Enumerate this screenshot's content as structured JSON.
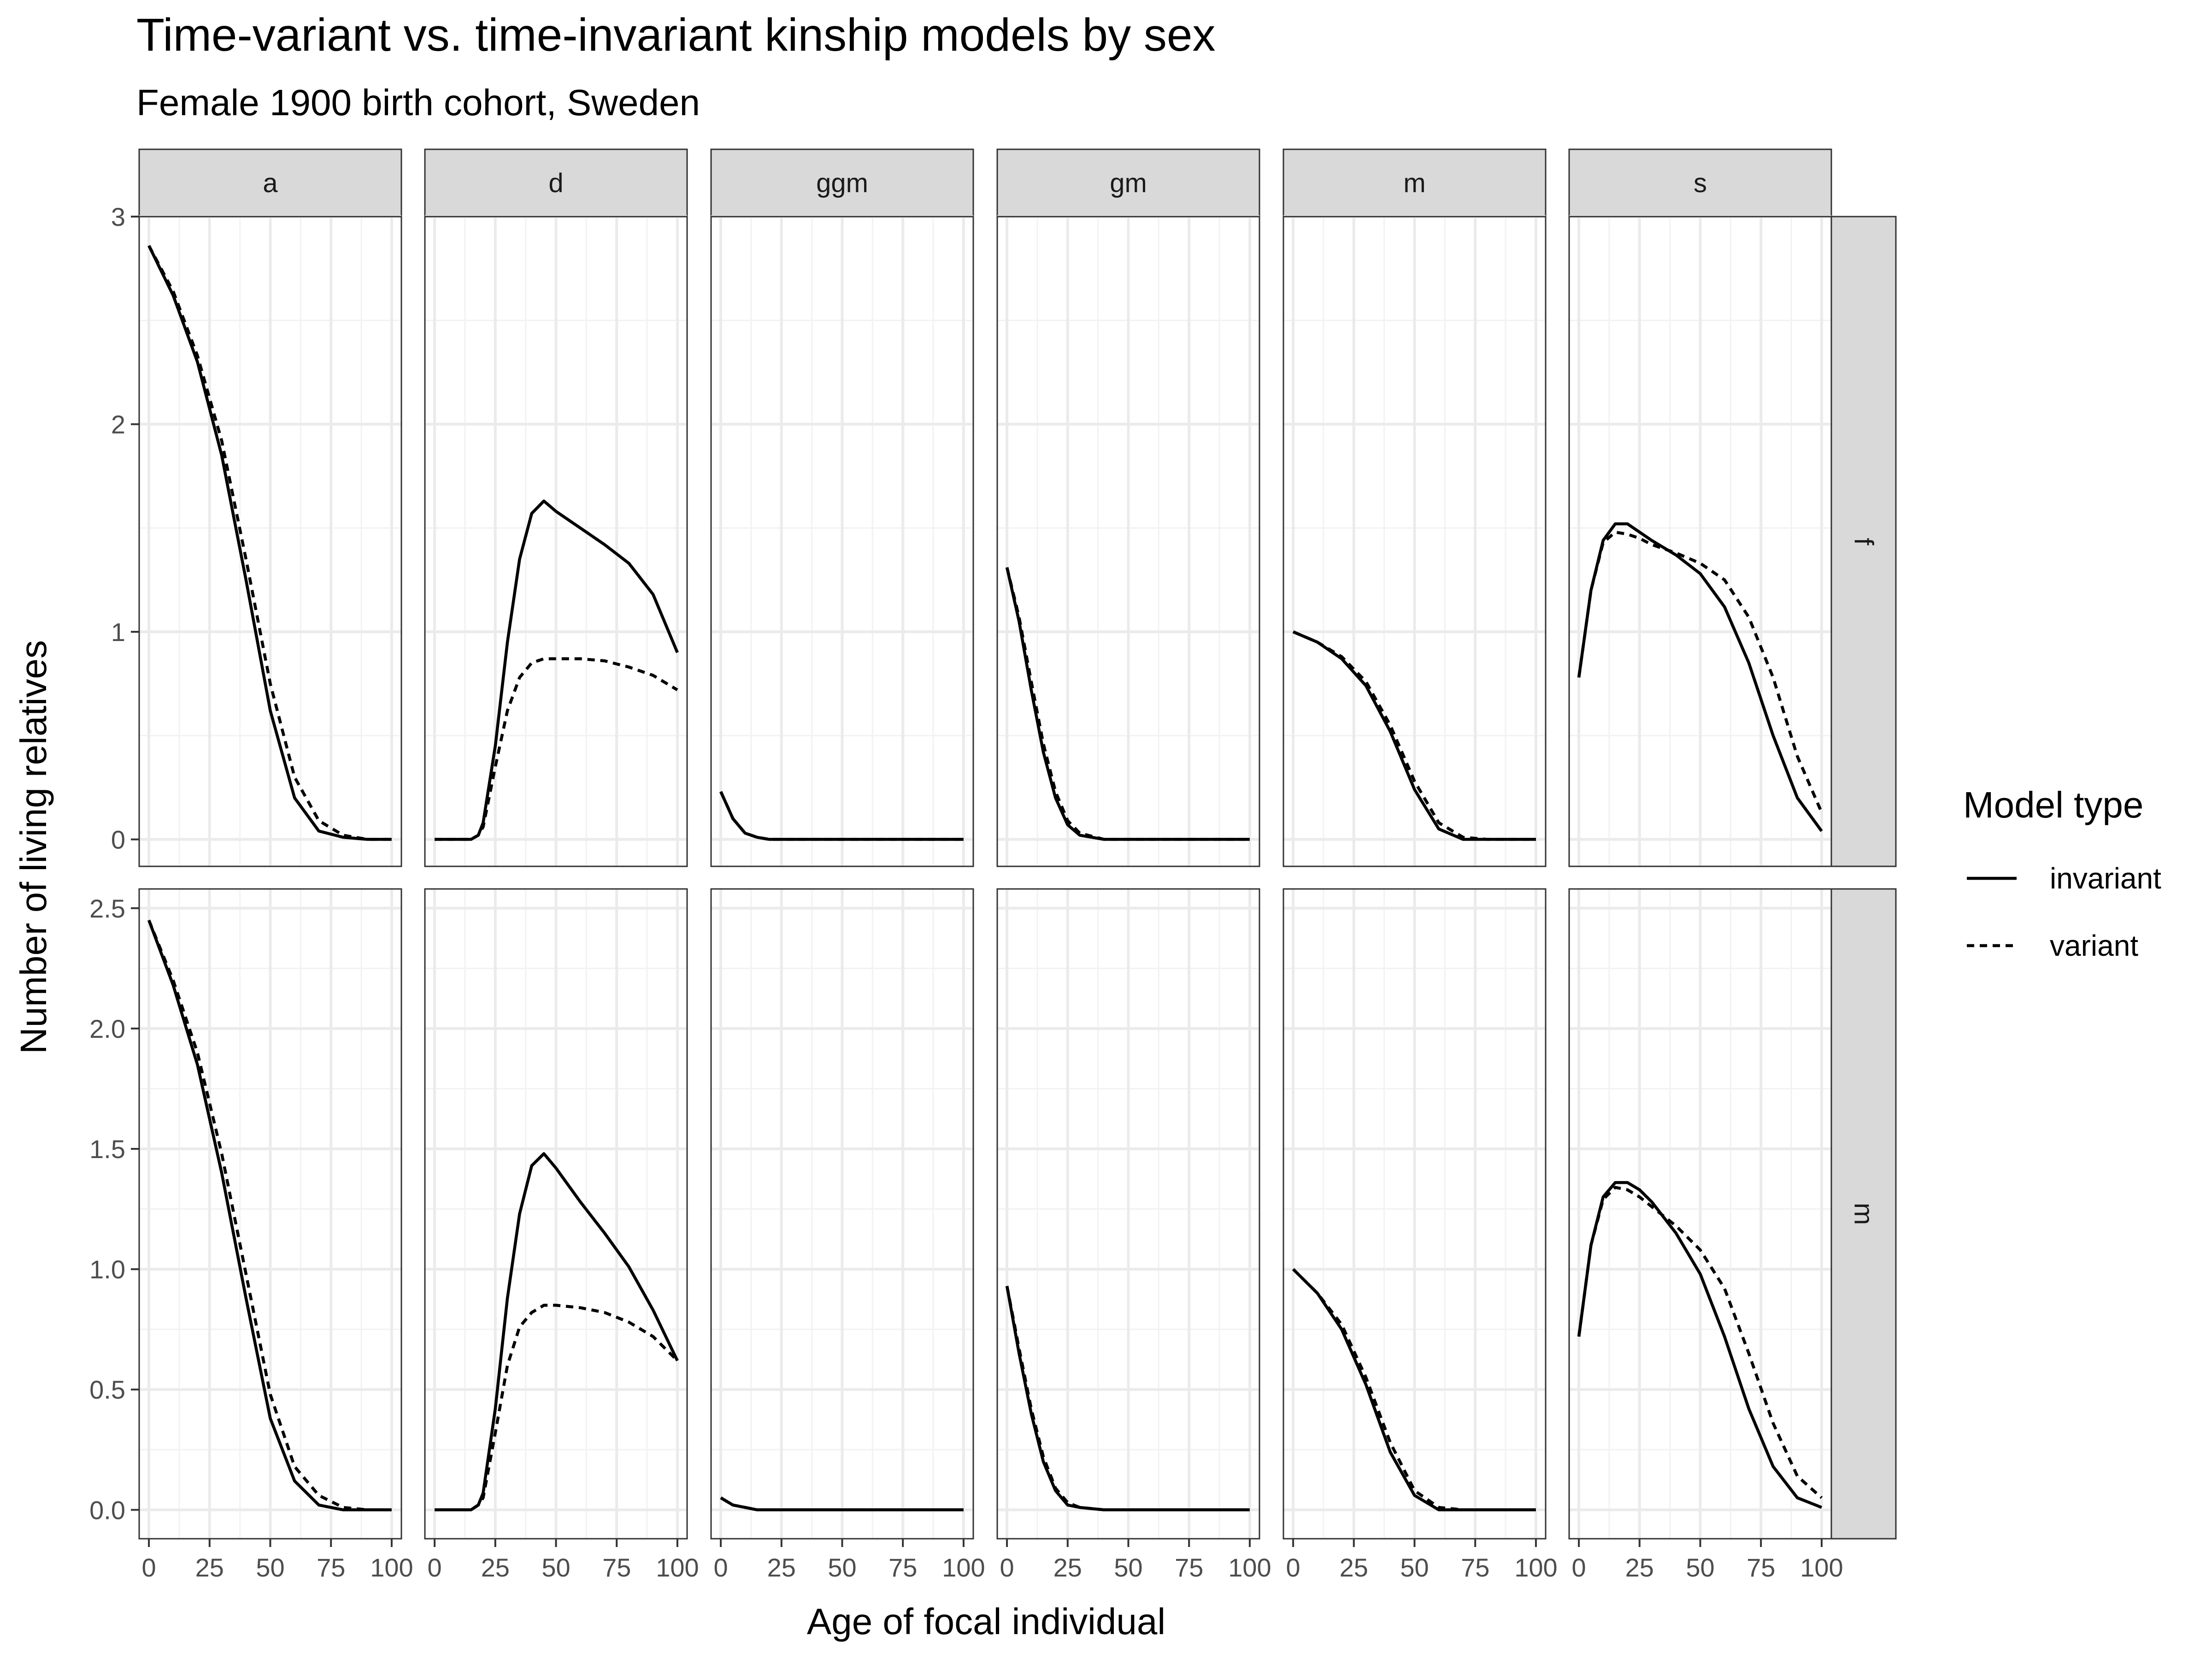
{
  "chart_data": {
    "type": "line",
    "title": "Time-variant vs. time-invariant kinship models by sex",
    "subtitle": "Female 1900 birth cohort, Sweden",
    "xlabel": "Age of focal individual",
    "ylabel": "Number of living relatives",
    "x_ticks": [
      0,
      25,
      50,
      75,
      100
    ],
    "xlim": [
      -4,
      104
    ],
    "columns": [
      "a",
      "d",
      "ggm",
      "gm",
      "m",
      "s"
    ],
    "rows": [
      "f",
      "m"
    ],
    "rows_y": {
      "f": {
        "ylim": [
          -0.13,
          3.0
        ],
        "ticks": [
          0,
          1,
          2,
          3
        ],
        "tick_labels": [
          "0",
          "1",
          "2",
          "3"
        ]
      },
      "m": {
        "ylim": [
          -0.12,
          2.58
        ],
        "ticks": [
          0,
          0.5,
          1,
          1.5,
          2,
          2.5
        ],
        "tick_labels": [
          "0.0",
          "0.5",
          "1.0",
          "1.5",
          "2.0",
          "2.5"
        ]
      }
    },
    "grid": true,
    "legend": {
      "title": "Model type",
      "position": "right",
      "entries": [
        {
          "name": "invariant",
          "linetype": "solid"
        },
        {
          "name": "variant",
          "linetype": "dashed"
        }
      ]
    },
    "line_color": "#000000",
    "panels": [
      {
        "col": "a",
        "row": "f",
        "series": [
          {
            "name": "invariant",
            "x": [
              0,
              10,
              20,
              30,
              40,
              50,
              60,
              70,
              80,
              90,
              100
            ],
            "y": [
              2.86,
              2.62,
              2.3,
              1.85,
              1.25,
              0.62,
              0.2,
              0.04,
              0.01,
              0.0,
              0.0
            ]
          },
          {
            "name": "variant",
            "x": [
              0,
              10,
              20,
              30,
              40,
              50,
              60,
              70,
              80,
              90,
              100
            ],
            "y": [
              2.86,
              2.64,
              2.33,
              1.92,
              1.35,
              0.75,
              0.3,
              0.09,
              0.02,
              0.0,
              0.0
            ]
          }
        ]
      },
      {
        "col": "d",
        "row": "f",
        "series": [
          {
            "name": "invariant",
            "x": [
              0,
              15,
              18,
              20,
              25,
              30,
              35,
              40,
              45,
              50,
              60,
              70,
              80,
              90,
              100
            ],
            "y": [
              0,
              0,
              0.02,
              0.08,
              0.45,
              0.95,
              1.35,
              1.57,
              1.63,
              1.58,
              1.5,
              1.42,
              1.33,
              1.18,
              0.9
            ]
          },
          {
            "name": "variant",
            "x": [
              0,
              15,
              18,
              20,
              25,
              30,
              35,
              40,
              45,
              50,
              60,
              70,
              80,
              90,
              100
            ],
            "y": [
              0,
              0,
              0.02,
              0.06,
              0.35,
              0.62,
              0.78,
              0.85,
              0.87,
              0.87,
              0.87,
              0.86,
              0.83,
              0.79,
              0.72
            ]
          }
        ]
      },
      {
        "col": "ggm",
        "row": "f",
        "series": [
          {
            "name": "invariant",
            "x": [
              0,
              5,
              10,
              15,
              20,
              30,
              40,
              60,
              80,
              100
            ],
            "y": [
              0.23,
              0.1,
              0.03,
              0.01,
              0,
              0,
              0,
              0,
              0,
              0
            ]
          },
          {
            "name": "variant",
            "x": [
              0,
              5,
              10,
              15,
              20,
              30,
              40,
              60,
              80,
              100
            ],
            "y": [
              0.23,
              0.1,
              0.03,
              0.01,
              0,
              0,
              0,
              0,
              0,
              0
            ]
          }
        ]
      },
      {
        "col": "gm",
        "row": "f",
        "series": [
          {
            "name": "invariant",
            "x": [
              0,
              5,
              10,
              15,
              20,
              25,
              30,
              40,
              50,
              60,
              80,
              100
            ],
            "y": [
              1.31,
              1.05,
              0.72,
              0.42,
              0.2,
              0.07,
              0.02,
              0,
              0,
              0,
              0,
              0
            ]
          },
          {
            "name": "variant",
            "x": [
              0,
              5,
              10,
              15,
              20,
              25,
              30,
              40,
              50,
              60,
              80,
              100
            ],
            "y": [
              1.31,
              1.07,
              0.76,
              0.46,
              0.23,
              0.09,
              0.03,
              0,
              0,
              0,
              0,
              0
            ]
          }
        ]
      },
      {
        "col": "m",
        "row": "f",
        "series": [
          {
            "name": "invariant",
            "x": [
              0,
              10,
              20,
              30,
              40,
              50,
              60,
              70,
              80,
              100
            ],
            "y": [
              1.0,
              0.95,
              0.87,
              0.74,
              0.52,
              0.24,
              0.05,
              0.0,
              0,
              0
            ]
          },
          {
            "name": "variant",
            "x": [
              0,
              10,
              20,
              30,
              40,
              50,
              60,
              70,
              80,
              100
            ],
            "y": [
              1.0,
              0.95,
              0.88,
              0.76,
              0.55,
              0.28,
              0.08,
              0.01,
              0,
              0
            ]
          }
        ]
      },
      {
        "col": "s",
        "row": "f",
        "series": [
          {
            "name": "invariant",
            "x": [
              0,
              5,
              10,
              15,
              20,
              25,
              30,
              40,
              50,
              60,
              70,
              80,
              90,
              100
            ],
            "y": [
              0.78,
              1.2,
              1.44,
              1.52,
              1.52,
              1.48,
              1.44,
              1.37,
              1.28,
              1.12,
              0.85,
              0.5,
              0.2,
              0.04
            ]
          },
          {
            "name": "variant",
            "x": [
              0,
              5,
              10,
              15,
              20,
              25,
              30,
              40,
              50,
              60,
              70,
              80,
              90,
              100
            ],
            "y": [
              0.78,
              1.2,
              1.43,
              1.48,
              1.47,
              1.45,
              1.42,
              1.38,
              1.33,
              1.25,
              1.07,
              0.78,
              0.4,
              0.13
            ]
          }
        ]
      },
      {
        "col": "a",
        "row": "m",
        "series": [
          {
            "name": "invariant",
            "x": [
              0,
              10,
              20,
              30,
              40,
              50,
              60,
              70,
              80,
              90,
              100
            ],
            "y": [
              2.45,
              2.18,
              1.85,
              1.4,
              0.88,
              0.38,
              0.12,
              0.02,
              0.0,
              0,
              0
            ]
          },
          {
            "name": "variant",
            "x": [
              0,
              10,
              20,
              30,
              40,
              50,
              60,
              70,
              80,
              90,
              100
            ],
            "y": [
              2.45,
              2.2,
              1.9,
              1.48,
              0.98,
              0.48,
              0.18,
              0.06,
              0.01,
              0,
              0
            ]
          }
        ]
      },
      {
        "col": "d",
        "row": "m",
        "series": [
          {
            "name": "invariant",
            "x": [
              0,
              15,
              18,
              20,
              25,
              30,
              35,
              40,
              45,
              50,
              60,
              70,
              80,
              90,
              100
            ],
            "y": [
              0,
              0,
              0.02,
              0.07,
              0.42,
              0.88,
              1.23,
              1.43,
              1.48,
              1.42,
              1.28,
              1.15,
              1.01,
              0.83,
              0.62
            ]
          },
          {
            "name": "variant",
            "x": [
              0,
              15,
              18,
              20,
              25,
              30,
              35,
              40,
              45,
              50,
              60,
              70,
              80,
              90,
              100
            ],
            "y": [
              0,
              0,
              0.02,
              0.05,
              0.32,
              0.6,
              0.76,
              0.82,
              0.85,
              0.85,
              0.84,
              0.82,
              0.78,
              0.72,
              0.62
            ]
          }
        ]
      },
      {
        "col": "ggm",
        "row": "m",
        "series": [
          {
            "name": "invariant",
            "x": [
              0,
              5,
              10,
              15,
              20,
              40,
              60,
              80,
              100
            ],
            "y": [
              0.05,
              0.02,
              0.01,
              0,
              0,
              0,
              0,
              0,
              0
            ]
          },
          {
            "name": "variant",
            "x": [
              0,
              5,
              10,
              15,
              20,
              40,
              60,
              80,
              100
            ],
            "y": [
              0.05,
              0.02,
              0.01,
              0,
              0,
              0,
              0,
              0,
              0
            ]
          }
        ]
      },
      {
        "col": "gm",
        "row": "m",
        "series": [
          {
            "name": "invariant",
            "x": [
              0,
              5,
              10,
              15,
              20,
              25,
              30,
              40,
              50,
              60,
              80,
              100
            ],
            "y": [
              0.93,
              0.65,
              0.4,
              0.2,
              0.08,
              0.02,
              0.01,
              0,
              0,
              0,
              0,
              0
            ]
          },
          {
            "name": "variant",
            "x": [
              0,
              5,
              10,
              15,
              20,
              25,
              30,
              40,
              50,
              60,
              80,
              100
            ],
            "y": [
              0.93,
              0.67,
              0.42,
              0.22,
              0.09,
              0.03,
              0.01,
              0,
              0,
              0,
              0,
              0
            ]
          }
        ]
      },
      {
        "col": "m",
        "row": "m",
        "series": [
          {
            "name": "invariant",
            "x": [
              0,
              10,
              20,
              30,
              40,
              50,
              60,
              70,
              80,
              100
            ],
            "y": [
              1.0,
              0.9,
              0.75,
              0.52,
              0.24,
              0.06,
              0.0,
              0,
              0,
              0
            ]
          },
          {
            "name": "variant",
            "x": [
              0,
              10,
              20,
              30,
              40,
              50,
              60,
              70,
              80,
              100
            ],
            "y": [
              1.0,
              0.9,
              0.77,
              0.55,
              0.28,
              0.08,
              0.01,
              0,
              0,
              0
            ]
          }
        ]
      },
      {
        "col": "s",
        "row": "m",
        "series": [
          {
            "name": "invariant",
            "x": [
              0,
              5,
              10,
              15,
              20,
              25,
              30,
              40,
              50,
              60,
              70,
              80,
              90,
              100
            ],
            "y": [
              0.72,
              1.1,
              1.3,
              1.36,
              1.36,
              1.33,
              1.28,
              1.15,
              0.98,
              0.72,
              0.42,
              0.18,
              0.05,
              0.01
            ]
          },
          {
            "name": "variant",
            "x": [
              0,
              5,
              10,
              15,
              20,
              25,
              30,
              40,
              50,
              60,
              70,
              80,
              90,
              100
            ],
            "y": [
              0.72,
              1.1,
              1.29,
              1.34,
              1.33,
              1.3,
              1.26,
              1.18,
              1.08,
              0.92,
              0.65,
              0.36,
              0.14,
              0.05
            ]
          }
        ]
      }
    ]
  }
}
